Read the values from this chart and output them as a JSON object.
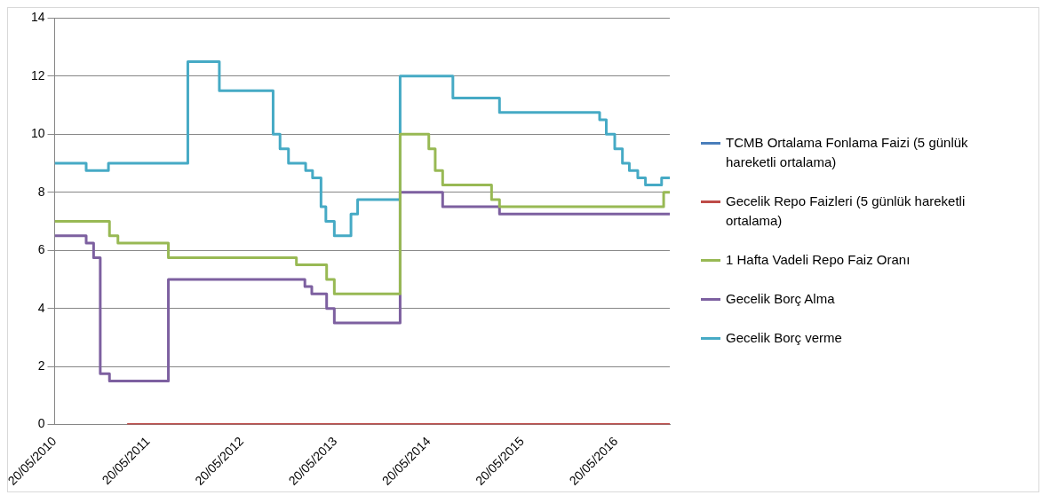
{
  "chart_data": {
    "type": "step",
    "xlim": [
      "2010-05-20",
      "2016-12-16"
    ],
    "xticks": [
      {
        "value": "2010-05-20",
        "label": "20/05/2010"
      },
      {
        "value": "2011-05-20",
        "label": "20/05/2011"
      },
      {
        "value": "2012-05-20",
        "label": "20/05/2012"
      },
      {
        "value": "2013-05-20",
        "label": "20/05/2013"
      },
      {
        "value": "2014-05-20",
        "label": "20/05/2014"
      },
      {
        "value": "2015-05-20",
        "label": "20/05/2015"
      },
      {
        "value": "2016-05-20",
        "label": "20/05/2016"
      }
    ],
    "ylim": [
      0,
      14
    ],
    "yticks": [
      0,
      2,
      4,
      6,
      8,
      10,
      12,
      14
    ],
    "grid": "y",
    "legend": "right",
    "marker": "none",
    "line_style": "solid",
    "series": [
      {
        "name": "TCMB Ortalama Fonlama Faizi (5 günlük hareketli ortalama)",
        "color": "#4a7ebb"
      },
      {
        "name": "Gecelik Repo Faizleri (5 günlük hareketli ortalama)",
        "color": "#be4b48",
        "x": [
          "2011-02-27",
          "2016-12-16"
        ],
        "values": [
          0,
          0
        ]
      },
      {
        "name": "1 Hafta Vadeli Repo Faiz Oranı",
        "color": "#98b954",
        "x": [
          "2010-05-20",
          "2010-12-20",
          "2011-01-22",
          "2011-08-07",
          "2012-12-19",
          "2013-04-16",
          "2013-05-16",
          "2014-01-28",
          "2014-05-20",
          "2014-06-14",
          "2014-07-13",
          "2015-01-20",
          "2015-02-20",
          "2016-11-22",
          "2016-12-16"
        ],
        "values": [
          7,
          6.5,
          6.25,
          5.75,
          5.5,
          5,
          4.5,
          10,
          9.5,
          8.75,
          8.25,
          7.75,
          7.5,
          8,
          8
        ]
      },
      {
        "name": "Gecelik Borç Alma",
        "color": "#7d60a0",
        "x": [
          "2010-05-20",
          "2010-09-20",
          "2010-10-19",
          "2010-11-14",
          "2010-12-20",
          "2011-08-07",
          "2013-01-21",
          "2013-02-17",
          "2013-04-16",
          "2013-05-16",
          "2014-01-28",
          "2014-07-13",
          "2015-02-20",
          "2016-12-16"
        ],
        "values": [
          6.5,
          6.25,
          5.75,
          1.75,
          1.5,
          5,
          4.75,
          4.5,
          4,
          3.5,
          8,
          7.5,
          7.25,
          7.25
        ]
      },
      {
        "name": "Gecelik Borç verme",
        "color": "#46aac5",
        "x": [
          "2010-05-20",
          "2010-09-20",
          "2010-12-16",
          "2011-10-22",
          "2012-02-22",
          "2012-09-19",
          "2012-10-16",
          "2012-11-18",
          "2013-01-24",
          "2013-02-20",
          "2013-03-25",
          "2013-04-13",
          "2013-05-16",
          "2013-07-20",
          "2013-08-15",
          "2014-01-28",
          "2014-08-22",
          "2015-02-20",
          "2016-03-17",
          "2016-04-12",
          "2016-05-15",
          "2016-06-14",
          "2016-07-11",
          "2016-08-13",
          "2016-09-12",
          "2016-11-14",
          "2016-12-16"
        ],
        "values": [
          9,
          8.75,
          9,
          12.5,
          11.5,
          10,
          9.5,
          9,
          8.75,
          8.5,
          7.5,
          7,
          6.5,
          7.25,
          7.75,
          12,
          11.25,
          10.75,
          10.5,
          10,
          9.5,
          9,
          8.75,
          8.5,
          8.25,
          8.5,
          8.5
        ]
      }
    ]
  }
}
